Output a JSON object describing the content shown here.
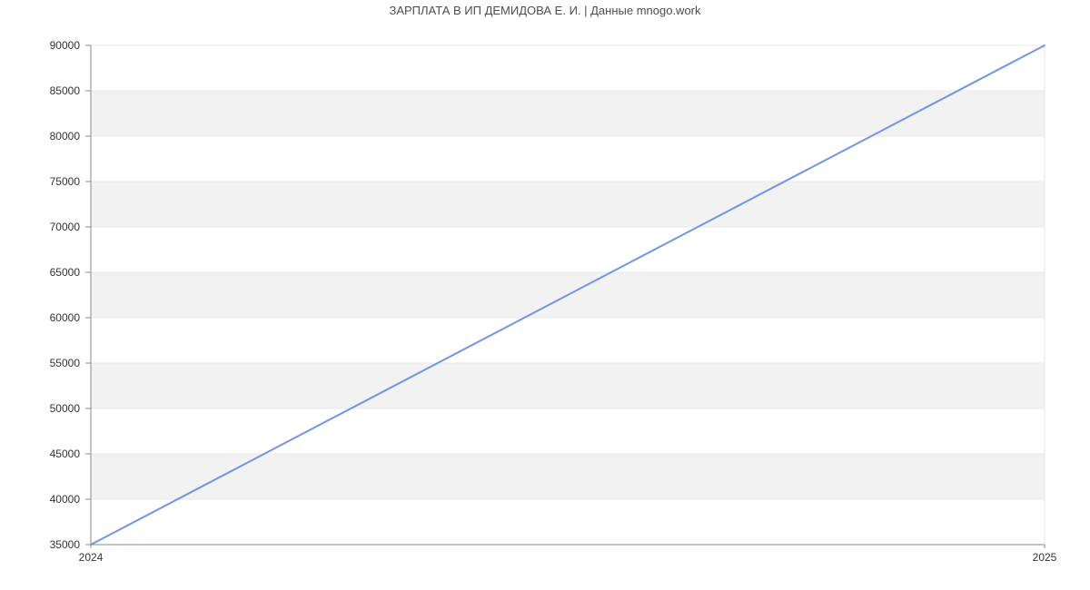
{
  "page": {
    "title": "ЗАРПЛАТА В ИП ДЕМИДОВА Е. И. | Данные mnogo.work"
  },
  "chart_data": {
    "type": "line",
    "title": "ЗАРПЛАТА В ИП ДЕМИДОВА Е. И. | Данные mnogo.work",
    "categories": [
      "2024",
      "2025"
    ],
    "series": [
      {
        "name": "salary",
        "values": [
          35000,
          90000
        ],
        "color": "#7296e4"
      }
    ],
    "xlabel": "",
    "ylabel": "",
    "ylim": [
      35000,
      90000
    ],
    "ytick_step": 5000,
    "yticks": [
      35000,
      40000,
      45000,
      50000,
      55000,
      60000,
      65000,
      70000,
      75000,
      80000,
      85000,
      90000
    ],
    "xticks": [
      "2024",
      "2025"
    ],
    "grid": true,
    "legend": "none",
    "band_colors": [
      "#ffffff",
      "#f2f2f2"
    ]
  },
  "style": {
    "background": "#ffffff",
    "title_color": "#4d4d4d",
    "tick_label_color": "#333333",
    "axis_color": "#8a8a8a",
    "gridline_color": "#e9e9e9",
    "plot_border_color": "#e6e6e6",
    "line_color": "#7296e4",
    "band_gray": "#f2f2f2"
  }
}
